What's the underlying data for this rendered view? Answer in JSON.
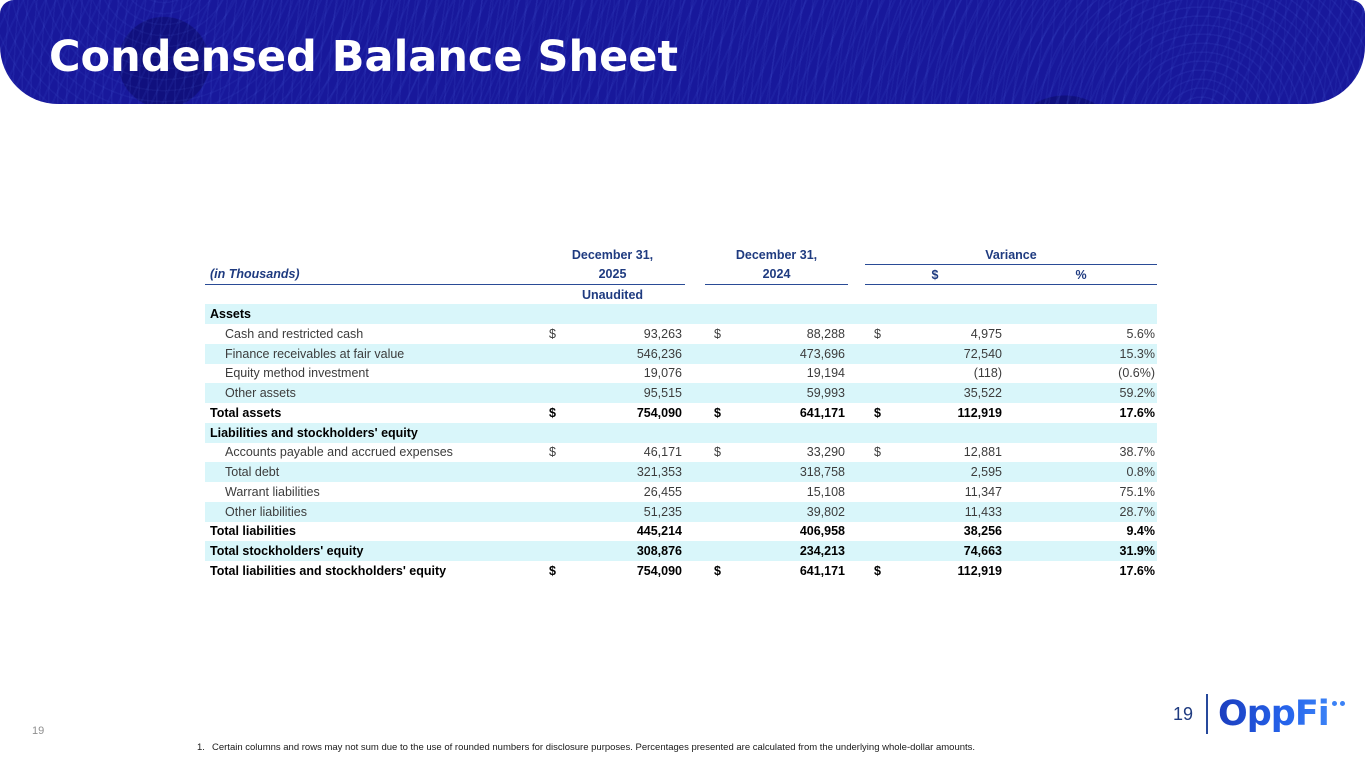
{
  "slide": {
    "title": "Condensed Balance Sheet"
  },
  "colors": {
    "header_bg": "#18189b",
    "navy_text": "#1f3b80",
    "rule_line": "#2a4b96",
    "stripe": "#d9f6fa",
    "logo_blue_dark": "#1b3dbe",
    "logo_blue_light": "#3b82f6"
  },
  "table": {
    "unit_label": "(in Thousands)",
    "headers": {
      "col_2025": {
        "line1": "December 31,",
        "line2": "2025",
        "line3": "Unaudited"
      },
      "col_2024": {
        "line1": "December 31,",
        "line2": "2024"
      },
      "variance": {
        "label": "Variance",
        "sub_dollar": "$",
        "sub_pct": "%"
      }
    },
    "rows": [
      {
        "label": "Assets",
        "style": "section",
        "d1": "",
        "v1": "",
        "d2": "",
        "v2": "",
        "d3": "",
        "v3": "",
        "pct": ""
      },
      {
        "label": "Cash and restricted cash",
        "style": "item",
        "d1": "$",
        "v1": "93,263",
        "d2": "$",
        "v2": "88,288",
        "d3": "$",
        "v3": "4,975",
        "pct": "5.6%"
      },
      {
        "label": "Finance receivables at fair value",
        "style": "item",
        "d1": "",
        "v1": "546,236",
        "d2": "",
        "v2": "473,696",
        "d3": "",
        "v3": "72,540",
        "pct": "15.3%"
      },
      {
        "label": "Equity method investment",
        "style": "item",
        "d1": "",
        "v1": "19,076",
        "d2": "",
        "v2": "19,194",
        "d3": "",
        "v3": "(118)",
        "pct": "(0.6%)"
      },
      {
        "label": "Other assets",
        "style": "item",
        "d1": "",
        "v1": "95,515",
        "d2": "",
        "v2": "59,993",
        "d3": "",
        "v3": "35,522",
        "pct": "59.2%"
      },
      {
        "label": "Total assets",
        "style": "total",
        "d1": "$",
        "v1": "754,090",
        "d2": "$",
        "v2": "641,171",
        "d3": "$",
        "v3": "112,919",
        "pct": "17.6%"
      },
      {
        "label": "Liabilities and stockholders' equity",
        "style": "section",
        "d1": "",
        "v1": "",
        "d2": "",
        "v2": "",
        "d3": "",
        "v3": "",
        "pct": ""
      },
      {
        "label": "Accounts payable and accrued expenses",
        "style": "item",
        "d1": "$",
        "v1": "46,171",
        "d2": "$",
        "v2": "33,290",
        "d3": "$",
        "v3": "12,881",
        "pct": "38.7%"
      },
      {
        "label": "Total debt",
        "style": "item",
        "d1": "",
        "v1": "321,353",
        "d2": "",
        "v2": "318,758",
        "d3": "",
        "v3": "2,595",
        "pct": "0.8%"
      },
      {
        "label": "Warrant liabilities",
        "style": "item",
        "d1": "",
        "v1": "26,455",
        "d2": "",
        "v2": "15,108",
        "d3": "",
        "v3": "11,347",
        "pct": "75.1%"
      },
      {
        "label": "Other liabilities",
        "style": "item",
        "d1": "",
        "v1": "51,235",
        "d2": "",
        "v2": "39,802",
        "d3": "",
        "v3": "11,433",
        "pct": "28.7%"
      },
      {
        "label": "Total liabilities",
        "style": "total",
        "d1": "",
        "v1": "445,214",
        "d2": "",
        "v2": "406,958",
        "d3": "",
        "v3": "38,256",
        "pct": "9.4%"
      },
      {
        "label": "Total stockholders' equity",
        "style": "total",
        "d1": "",
        "v1": "308,876",
        "d2": "",
        "v2": "234,213",
        "d3": "",
        "v3": "74,663",
        "pct": "31.9%"
      },
      {
        "label": "Total liabilities and stockholders' equity",
        "style": "total",
        "d1": "$",
        "v1": "754,090",
        "d2": "$",
        "v2": "641,171",
        "d3": "$",
        "v3": "112,919",
        "pct": "17.6%"
      }
    ]
  },
  "footer": {
    "page_number_small": "19",
    "page_number": "19",
    "logo_text": "OppFi",
    "footnote_marker": "1.",
    "footnote_text": "Certain columns and rows may not sum due to the use of rounded numbers for disclosure purposes. Percentages presented are calculated from the underlying whole-dollar amounts."
  }
}
